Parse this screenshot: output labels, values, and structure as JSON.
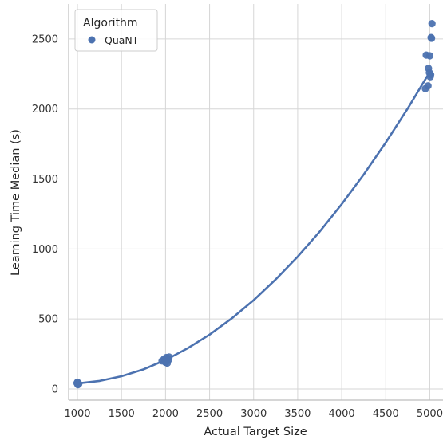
{
  "chart_data": {
    "type": "scatter",
    "xlabel": "Actual Target Size",
    "ylabel": "Learning Time Median (s)",
    "xlim": [
      900,
      5150
    ],
    "ylim": [
      -80,
      2750
    ],
    "xticks": [
      1000,
      1500,
      2000,
      2500,
      3000,
      3500,
      4000,
      4500,
      5000
    ],
    "yticks": [
      0,
      500,
      1000,
      1500,
      2000,
      2500
    ],
    "grid": true,
    "legend": {
      "title": "Algorithm",
      "placement": "top-left"
    },
    "series": [
      {
        "name": "QuaNT",
        "color": "#4c72b0",
        "points": [
          [
            1000,
            48
          ],
          [
            1005,
            30
          ],
          [
            1010,
            40
          ],
          [
            1015,
            36
          ],
          [
            995,
            42
          ],
          [
            1008,
            34
          ],
          [
            1960,
            200
          ],
          [
            1985,
            215
          ],
          [
            2000,
            190
          ],
          [
            2010,
            225
          ],
          [
            2020,
            185
          ],
          [
            2030,
            205
          ],
          [
            2040,
            228
          ],
          [
            4950,
            2145
          ],
          [
            4960,
            2385
          ],
          [
            4980,
            2165
          ],
          [
            4985,
            2290
          ],
          [
            4995,
            2260
          ],
          [
            5000,
            2380
          ],
          [
            5005,
            2230
          ],
          [
            5010,
            2245
          ],
          [
            5015,
            2510
          ],
          [
            5020,
            2505
          ],
          [
            5025,
            2610
          ]
        ],
        "fit": {
          "type": "quadratic",
          "x": [
            1000,
            1250,
            1500,
            1750,
            2000,
            2250,
            2500,
            2750,
            3000,
            3250,
            3500,
            3750,
            4000,
            4250,
            4500,
            4750,
            5000
          ],
          "y": [
            39,
            57,
            91,
            140,
            207,
            290,
            388,
            503,
            634,
            782,
            945,
            1124,
            1320,
            1532,
            1760,
            2004,
            2264
          ]
        }
      }
    ]
  }
}
